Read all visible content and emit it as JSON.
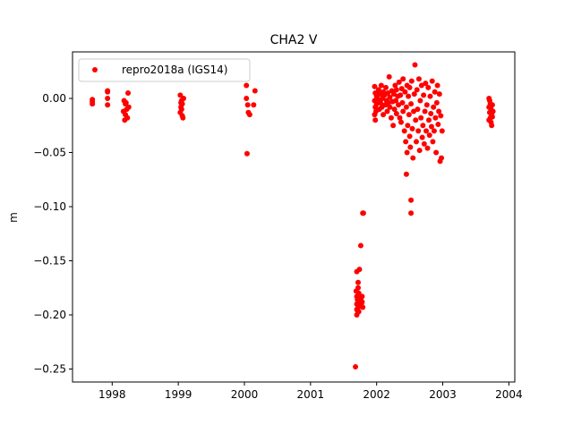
{
  "chart_data": {
    "type": "scatter",
    "title": "CHA2 V",
    "xlabel": "",
    "ylabel": "m",
    "xlim": [
      1997.4,
      2004.09
    ],
    "ylim": [
      -0.262,
      0.043
    ],
    "xticks": [
      "1998",
      "1999",
      "2000",
      "2001",
      "2002",
      "2003",
      "2004"
    ],
    "xtick_values": [
      1998,
      1999,
      2000,
      2001,
      2002,
      2003,
      2004
    ],
    "yticks": [
      "0.00",
      "−0.05",
      "−0.10",
      "−0.15",
      "−0.20",
      "−0.25"
    ],
    "ytick_values": [
      0,
      -0.05,
      -0.1,
      -0.15,
      -0.2,
      -0.25
    ],
    "grid": false,
    "legend_position": "top-left",
    "series": [
      {
        "name": "repro2018a (IGS14)",
        "color": "#ff0000",
        "marker": "circle",
        "points": [
          [
            1997.7,
            -0.001
          ],
          [
            1997.7,
            -0.003
          ],
          [
            1997.7,
            -0.005
          ],
          [
            1997.93,
            0.007
          ],
          [
            1997.93,
            0.006
          ],
          [
            1997.93,
            0.0
          ],
          [
            1997.93,
            -0.006
          ],
          [
            1998.18,
            -0.002
          ],
          [
            1998.2,
            -0.005
          ],
          [
            1998.22,
            -0.01
          ],
          [
            1998.2,
            -0.015
          ],
          [
            1998.19,
            -0.02
          ],
          [
            1998.23,
            -0.018
          ],
          [
            1998.24,
            0.005
          ],
          [
            1998.25,
            -0.008
          ],
          [
            1998.17,
            -0.012
          ],
          [
            1998.21,
            -0.004
          ],
          [
            1999.03,
            0.003
          ],
          [
            1999.05,
            -0.002
          ],
          [
            1999.06,
            -0.005
          ],
          [
            1999.04,
            -0.008
          ],
          [
            1999.05,
            -0.01
          ],
          [
            1999.03,
            -0.013
          ],
          [
            1999.06,
            -0.016
          ],
          [
            1999.07,
            -0.018
          ],
          [
            1999.08,
            0.0
          ],
          [
            1999.04,
            -0.004
          ],
          [
            2000.03,
            0.012
          ],
          [
            2000.03,
            0.0
          ],
          [
            2000.05,
            -0.006
          ],
          [
            2000.06,
            -0.013
          ],
          [
            2000.08,
            -0.015
          ],
          [
            2000.04,
            -0.051
          ],
          [
            2000.16,
            0.007
          ],
          [
            2000.14,
            -0.006
          ],
          [
            2001.68,
            -0.248
          ],
          [
            2001.7,
            -0.16
          ],
          [
            2001.72,
            -0.17
          ],
          [
            2001.74,
            -0.158
          ],
          [
            2001.76,
            -0.136
          ],
          [
            2001.79,
            -0.106
          ],
          [
            2001.69,
            -0.178
          ],
          [
            2001.7,
            -0.183
          ],
          [
            2001.71,
            -0.186
          ],
          [
            2001.7,
            -0.19
          ],
          [
            2001.72,
            -0.193
          ],
          [
            2001.71,
            -0.196
          ],
          [
            2001.7,
            -0.2
          ],
          [
            2001.73,
            -0.18
          ],
          [
            2001.74,
            -0.188
          ],
          [
            2001.72,
            -0.175
          ],
          [
            2001.75,
            -0.192
          ],
          [
            2001.76,
            -0.185
          ],
          [
            2001.77,
            -0.19
          ],
          [
            2001.78,
            -0.183
          ],
          [
            2001.79,
            -0.193
          ],
          [
            2001.78,
            -0.188
          ],
          [
            2001.7,
            -0.195
          ],
          [
            2001.73,
            -0.197
          ],
          [
            2001.97,
            0.011
          ],
          [
            2001.98,
            0.005
          ],
          [
            2001.97,
            -0.002
          ],
          [
            2001.98,
            -0.008
          ],
          [
            2001.97,
            -0.015
          ],
          [
            2001.98,
            -0.02
          ],
          [
            2001.99,
            -0.012
          ],
          [
            2002.0,
            0.002
          ],
          [
            2002.0,
            -0.005
          ],
          [
            2002.03,
            0.008
          ],
          [
            2002.03,
            -0.001
          ],
          [
            2002.04,
            -0.01
          ],
          [
            2002.05,
            0.004
          ],
          [
            2002.06,
            -0.004
          ],
          [
            2002.07,
            0.012
          ],
          [
            2002.08,
            -0.008
          ],
          [
            2002.09,
            0.0
          ],
          [
            2002.1,
            0.006
          ],
          [
            2002.1,
            -0.015
          ],
          [
            2002.12,
            0.003
          ],
          [
            2002.13,
            -0.006
          ],
          [
            2002.14,
            0.01
          ],
          [
            2002.15,
            -0.002
          ],
          [
            2002.16,
            -0.012
          ],
          [
            2002.17,
            0.005
          ],
          [
            2002.18,
            -0.004
          ],
          [
            2002.19,
            0.02
          ],
          [
            2002.2,
            -0.008
          ],
          [
            2002.2,
            0.001
          ],
          [
            2002.22,
            -0.018
          ],
          [
            2002.23,
            0.007
          ],
          [
            2002.24,
            -0.003
          ],
          [
            2002.25,
            -0.025
          ],
          [
            2002.26,
            0.004
          ],
          [
            2002.27,
            -0.01
          ],
          [
            2002.28,
            0.012
          ],
          [
            2002.29,
            -0.002
          ],
          [
            2002.3,
            0.008
          ],
          [
            2002.3,
            -0.014
          ],
          [
            2002.32,
            0.002
          ],
          [
            2002.33,
            -0.006
          ],
          [
            2002.34,
            0.015
          ],
          [
            2002.35,
            -0.018
          ],
          [
            2002.36,
            0.003
          ],
          [
            2002.37,
            -0.022
          ],
          [
            2002.38,
            0.009
          ],
          [
            2002.39,
            -0.004
          ],
          [
            2002.4,
            0.018
          ],
          [
            2002.4,
            -0.012
          ],
          [
            2002.42,
            -0.03
          ],
          [
            2002.43,
            0.006
          ],
          [
            2002.44,
            -0.04
          ],
          [
            2002.45,
            -0.008
          ],
          [
            2002.46,
            0.012
          ],
          [
            2002.46,
            -0.05
          ],
          [
            2002.47,
            -0.025
          ],
          [
            2002.48,
            0.002
          ],
          [
            2002.49,
            -0.015
          ],
          [
            2002.5,
            0.01
          ],
          [
            2002.5,
            -0.035
          ],
          [
            2002.51,
            -0.045
          ],
          [
            2002.52,
            -0.005
          ],
          [
            2002.53,
            0.016
          ],
          [
            2002.54,
            -0.028
          ],
          [
            2002.55,
            -0.055
          ],
          [
            2002.56,
            -0.012
          ],
          [
            2002.57,
            0.004
          ],
          [
            2002.58,
            0.031
          ],
          [
            2002.59,
            -0.02
          ],
          [
            2002.6,
            -0.04
          ],
          [
            2002.61,
            0.008
          ],
          [
            2002.62,
            -0.01
          ],
          [
            2002.63,
            -0.03
          ],
          [
            2002.64,
            0.018
          ],
          [
            2002.65,
            -0.048
          ],
          [
            2002.66,
            -0.002
          ],
          [
            2002.67,
            -0.018
          ],
          [
            2002.68,
            0.012
          ],
          [
            2002.69,
            -0.036
          ],
          [
            2002.7,
            -0.025
          ],
          [
            2002.71,
            0.003
          ],
          [
            2002.72,
            -0.042
          ],
          [
            2002.73,
            -0.012
          ],
          [
            2002.74,
            0.014
          ],
          [
            2002.75,
            -0.03
          ],
          [
            2002.76,
            -0.006
          ],
          [
            2002.77,
            -0.046
          ],
          [
            2002.78,
            0.01
          ],
          [
            2002.79,
            -0.02
          ],
          [
            2002.8,
            -0.034
          ],
          [
            2002.81,
            0.002
          ],
          [
            2002.82,
            -0.014
          ],
          [
            2002.83,
            -0.026
          ],
          [
            2002.84,
            0.016
          ],
          [
            2002.85,
            -0.04
          ],
          [
            2002.86,
            -0.008
          ],
          [
            2002.87,
            -0.03
          ],
          [
            2002.88,
            0.006
          ],
          [
            2002.89,
            -0.018
          ],
          [
            2002.9,
            -0.05
          ],
          [
            2002.91,
            -0.004
          ],
          [
            2002.92,
            0.012
          ],
          [
            2002.93,
            -0.024
          ],
          [
            2002.94,
            -0.012
          ],
          [
            2002.95,
            0.004
          ],
          [
            2002.96,
            -0.058
          ],
          [
            2002.97,
            -0.016
          ],
          [
            2002.98,
            -0.055
          ],
          [
            2002.99,
            -0.03
          ],
          [
            2002.45,
            -0.07
          ],
          [
            2002.52,
            -0.094
          ],
          [
            2002.52,
            -0.106
          ],
          [
            2001.8,
            -0.106
          ],
          [
            2003.7,
            0.0
          ],
          [
            2003.71,
            -0.002
          ],
          [
            2003.72,
            -0.005
          ],
          [
            2003.7,
            -0.008
          ],
          [
            2003.73,
            -0.01
          ],
          [
            2003.71,
            -0.013
          ],
          [
            2003.74,
            -0.015
          ],
          [
            2003.72,
            -0.018
          ],
          [
            2003.7,
            -0.02
          ],
          [
            2003.73,
            -0.022
          ],
          [
            2003.74,
            -0.025
          ],
          [
            2003.75,
            -0.006
          ],
          [
            2003.76,
            -0.012
          ],
          [
            2003.75,
            -0.017
          ]
        ]
      }
    ]
  }
}
